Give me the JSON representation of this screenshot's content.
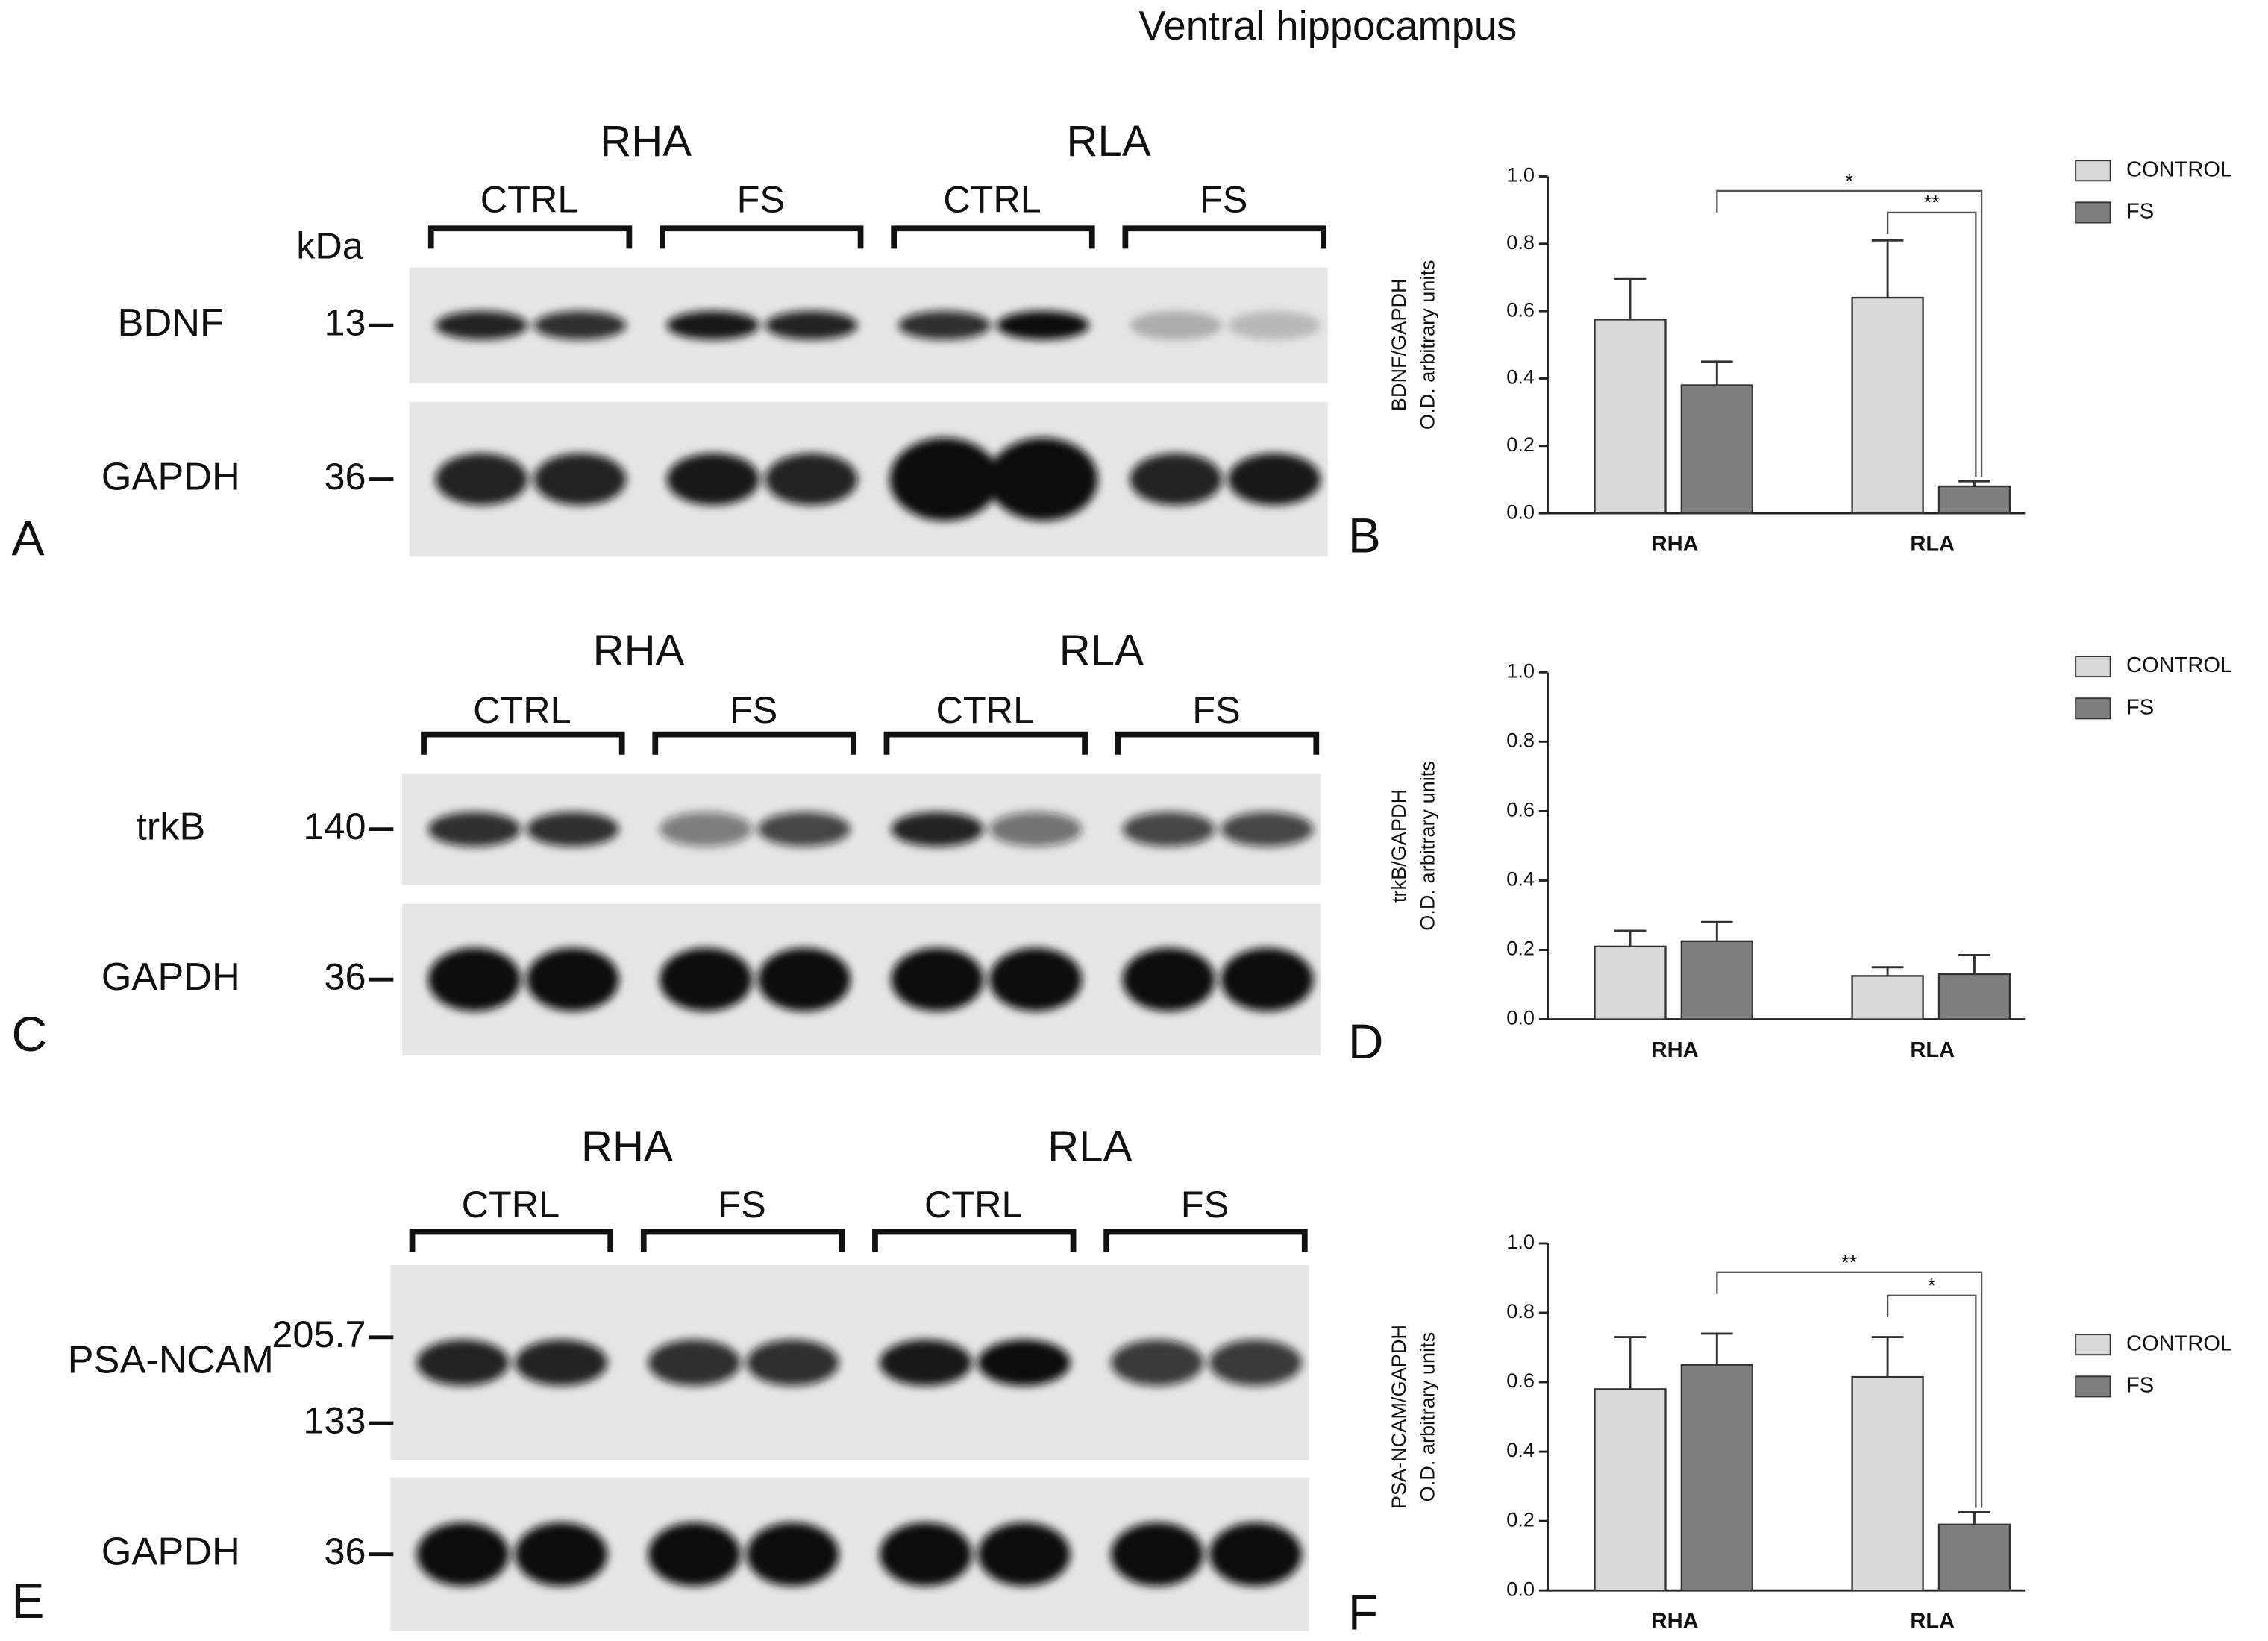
{
  "title": "Ventral hippocampus",
  "blots": [
    {
      "panel_label": "A",
      "groups": [
        "RHA",
        "RLA"
      ],
      "subgroups": [
        "CTRL",
        "FS",
        "CTRL",
        "FS"
      ],
      "unit": "kDa",
      "rows": [
        {
          "protein": "BDNF",
          "markers": [
            13
          ]
        },
        {
          "protein": "GAPDH",
          "markers": [
            36
          ]
        }
      ]
    },
    {
      "panel_label": "C",
      "groups": [
        "RHA",
        "RLA"
      ],
      "subgroups": [
        "CTRL",
        "FS",
        "CTRL",
        "FS"
      ],
      "rows": [
        {
          "protein": "trkB",
          "markers": [
            140
          ]
        },
        {
          "protein": "GAPDH",
          "markers": [
            36
          ]
        }
      ]
    },
    {
      "panel_label": "E",
      "groups": [
        "RHA",
        "RLA"
      ],
      "subgroups": [
        "CTRL",
        "FS",
        "CTRL",
        "FS"
      ],
      "rows": [
        {
          "protein": "PSA-NCAM",
          "markers": [
            205.7,
            133
          ]
        },
        {
          "protein": "GAPDH",
          "markers": [
            36
          ]
        }
      ]
    }
  ],
  "chart_data": [
    {
      "type": "bar",
      "panel_label": "B",
      "y_label": [
        "BDNF/GAPDH",
        "O.D. arbitrary units"
      ],
      "categories": [
        "RHA",
        "RLA"
      ],
      "series": [
        {
          "name": "CONTROL",
          "color": "#d9d9d9",
          "values": [
            0.575,
            0.64
          ],
          "errors": [
            0.12,
            0.17
          ]
        },
        {
          "name": "FS",
          "color": "#7f7f7f",
          "values": [
            0.38,
            0.08
          ],
          "errors": [
            0.07,
            0.015
          ]
        }
      ],
      "ylim": [
        0,
        1
      ],
      "yticks": [
        {
          "value": 0,
          "label": "0.0"
        },
        {
          "value": 0.2,
          "label": "0.2"
        },
        {
          "value": 0.4,
          "label": "0.4"
        },
        {
          "value": 0.6,
          "label": "0.6"
        },
        {
          "value": 0.8,
          "label": "0.8"
        },
        {
          "value": 1,
          "label": "1.0"
        }
      ],
      "legend": "upper right",
      "significance": [
        {
          "label": "*"
        },
        {
          "label": "**"
        }
      ]
    },
    {
      "type": "bar",
      "panel_label": "D",
      "y_label": [
        "trkB/GAPDH",
        "O.D. arbitrary units"
      ],
      "categories": [
        "RHA",
        "RLA"
      ],
      "series": [
        {
          "name": "CONTROL",
          "color": "#d9d9d9",
          "values": [
            0.21,
            0.125
          ],
          "errors": [
            0.045,
            0.025
          ]
        },
        {
          "name": "FS",
          "color": "#7f7f7f",
          "values": [
            0.225,
            0.13
          ],
          "errors": [
            0.055,
            0.055
          ]
        }
      ],
      "ylim": [
        0,
        1
      ],
      "yticks": [
        {
          "value": 0,
          "label": "0.0"
        },
        {
          "value": 0.2,
          "label": "0.2"
        },
        {
          "value": 0.4,
          "label": "0.4"
        },
        {
          "value": 0.6,
          "label": "0.6"
        },
        {
          "value": 0.8,
          "label": "0.8"
        },
        {
          "value": 1,
          "label": "1.0"
        }
      ],
      "legend": "upper right",
      "significance": []
    },
    {
      "type": "bar",
      "panel_label": "F",
      "y_label": [
        "PSA-NCAM/GAPDH",
        "O.D. arbitrary units"
      ],
      "categories": [
        "RHA",
        "RLA"
      ],
      "series": [
        {
          "name": "CONTROL",
          "color": "#d9d9d9",
          "values": [
            0.58,
            0.615
          ],
          "errors": [
            0.15,
            0.115
          ]
        },
        {
          "name": "FS",
          "color": "#7f7f7f",
          "values": [
            0.65,
            0.19
          ],
          "errors": [
            0.09,
            0.035
          ]
        }
      ],
      "ylim": [
        0,
        1
      ],
      "yticks": [
        {
          "value": 0,
          "label": "0.0"
        },
        {
          "value": 0.2,
          "label": "0.2"
        },
        {
          "value": 0.4,
          "label": "0.4"
        },
        {
          "value": 0.6,
          "label": "0.6"
        },
        {
          "value": 0.8,
          "label": "0.8"
        },
        {
          "value": 1,
          "label": "1.0"
        }
      ],
      "legend": "right",
      "significance": [
        {
          "label": "**"
        },
        {
          "label": "*"
        }
      ]
    }
  ]
}
